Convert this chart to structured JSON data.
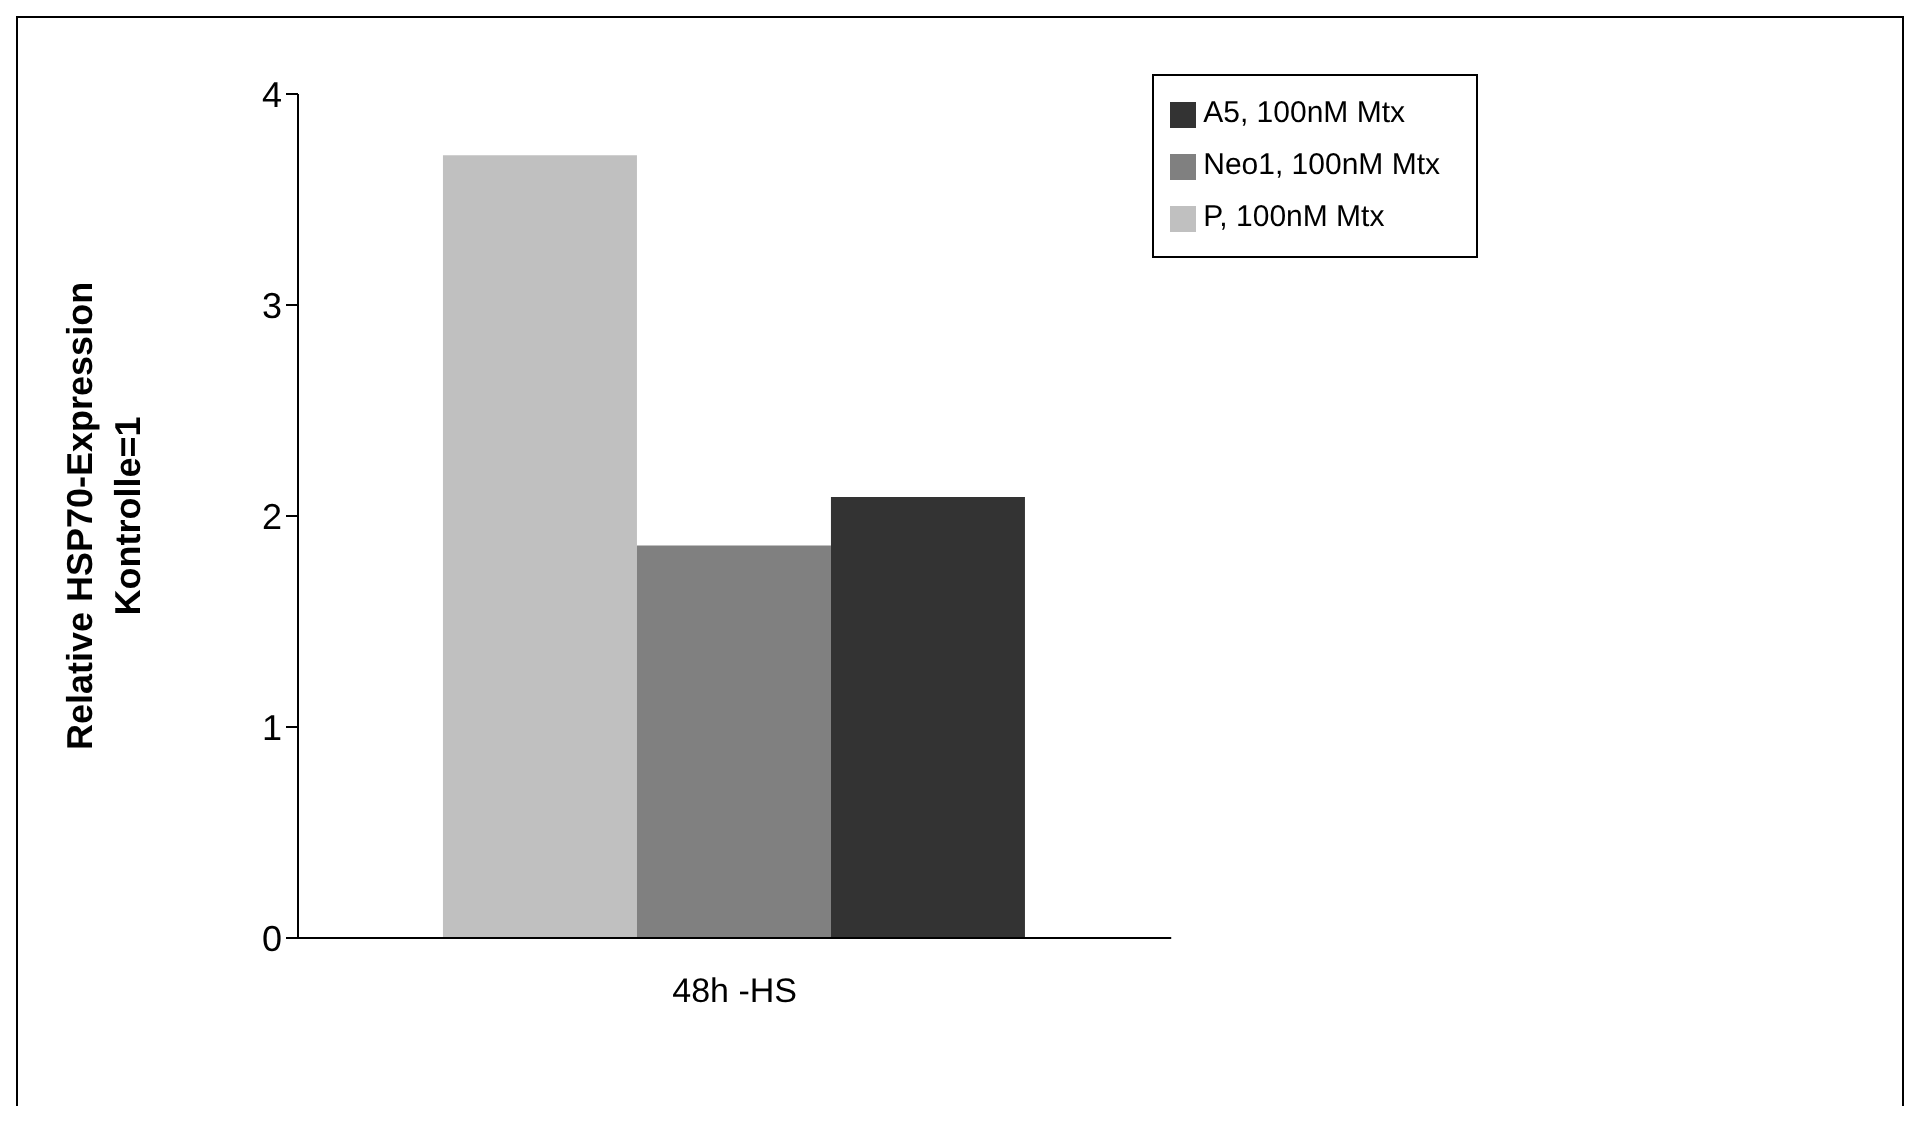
{
  "chart_data": {
    "type": "bar",
    "ylabel": "Relative HSP70-Expression\nKontrolle=1",
    "categories": [
      "48h  -HS"
    ],
    "series": [
      {
        "name": "P, 100nM Mtx",
        "color": "#c0c0c0",
        "values": [
          3.71
        ]
      },
      {
        "name": "Neo1, 100nM Mtx",
        "color": "#808080",
        "values": [
          1.86
        ]
      },
      {
        "name": "A5, 100nM Mtx",
        "color": "#333333",
        "values": [
          2.09
        ]
      }
    ],
    "ylim": [
      0,
      4
    ],
    "yticks": [
      0,
      1,
      2,
      3,
      4
    ],
    "grid": false,
    "legend": "top right"
  }
}
